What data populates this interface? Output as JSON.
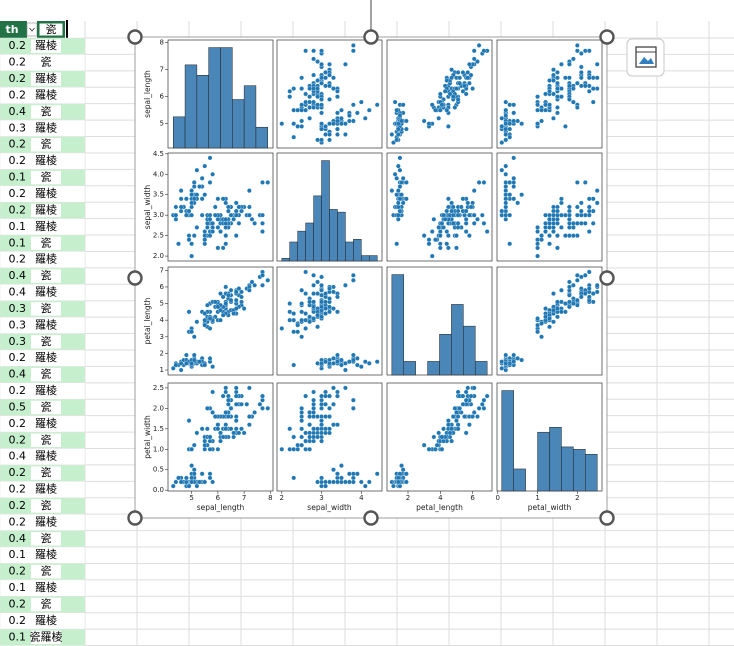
{
  "spreadsheet": {
    "headers": [
      "th",
      "瓷"
    ],
    "rows": [
      [
        0.2,
        "羅棱"
      ],
      [
        0.2,
        "瓷"
      ],
      [
        0.2,
        "羅棱"
      ],
      [
        0.2,
        "羅棱"
      ],
      [
        0.4,
        "瓷"
      ],
      [
        0.3,
        "羅棱"
      ],
      [
        0.2,
        "瓷"
      ],
      [
        0.2,
        "羅棱"
      ],
      [
        0.1,
        "瓷"
      ],
      [
        0.2,
        "羅棱"
      ],
      [
        0.2,
        "羅棱"
      ],
      [
        0.1,
        "羅棱"
      ],
      [
        0.1,
        "瓷"
      ],
      [
        0.2,
        "羅棱"
      ],
      [
        0.4,
        "瓷"
      ],
      [
        0.4,
        "羅棱"
      ],
      [
        0.3,
        "瓷"
      ],
      [
        0.3,
        "羅棱"
      ],
      [
        0.3,
        "瓷"
      ],
      [
        0.2,
        "羅棱"
      ],
      [
        0.4,
        "瓷"
      ],
      [
        0.2,
        "羅棱"
      ],
      [
        0.5,
        "瓷"
      ],
      [
        0.2,
        "羅棱"
      ],
      [
        0.2,
        "瓷"
      ],
      [
        0.4,
        "羅棱"
      ],
      [
        0.2,
        "瓷"
      ],
      [
        0.2,
        "羅棱"
      ],
      [
        0.2,
        "瓷"
      ],
      [
        0.2,
        "羅棱"
      ],
      [
        0.4,
        "瓷"
      ],
      [
        0.1,
        "羅棱"
      ],
      [
        0.2,
        "瓷"
      ],
      [
        0.1,
        "羅棱"
      ],
      [
        0.2,
        "瓷"
      ],
      [
        0.2,
        "羅棱"
      ],
      [
        0.1,
        "瓷羅棱"
      ]
    ]
  },
  "chart_data": {
    "type": "pairplot",
    "color": "#1f77b4",
    "hist_color": "#4a86b8",
    "variables": [
      {
        "name": "sepal_length",
        "lim": [
          4.1,
          8.1
        ],
        "xticks": [
          5,
          6,
          7,
          8
        ],
        "yticks": [
          5,
          6,
          7,
          8
        ],
        "hist": {
          "bins": [
            4.3,
            4.75,
            5.2,
            5.65,
            6.1,
            6.55,
            7.0,
            7.45,
            7.9
          ],
          "counts": [
            9,
            24,
            21,
            29,
            29,
            14,
            18,
            6
          ]
        },
        "values": [
          5.1,
          4.9,
          4.7,
          4.6,
          5.0,
          5.4,
          4.6,
          5.0,
          4.4,
          4.9,
          5.4,
          4.8,
          4.8,
          4.3,
          5.8,
          5.7,
          5.4,
          5.1,
          5.7,
          5.1,
          5.4,
          5.1,
          4.6,
          5.1,
          4.8,
          5.0,
          5.0,
          5.2,
          5.2,
          4.7,
          4.8,
          5.4,
          5.2,
          5.5,
          4.9,
          5.0,
          5.5,
          4.9,
          4.4,
          5.1,
          5.0,
          4.5,
          4.4,
          5.0,
          5.1,
          4.8,
          5.1,
          4.6,
          5.3,
          5.0,
          7.0,
          6.4,
          6.9,
          5.5,
          6.5,
          5.7,
          6.3,
          4.9,
          6.6,
          5.2,
          5.0,
          5.9,
          6.0,
          6.1,
          5.6,
          6.7,
          5.6,
          5.8,
          6.2,
          5.6,
          5.9,
          6.1,
          6.3,
          6.1,
          6.4,
          6.6,
          6.8,
          6.7,
          6.0,
          5.7,
          5.5,
          5.5,
          5.8,
          6.0,
          5.4,
          6.0,
          6.7,
          6.3,
          5.6,
          5.5,
          5.5,
          6.1,
          5.8,
          5.0,
          5.6,
          5.7,
          5.7,
          6.2,
          5.1,
          5.7,
          6.3,
          5.8,
          7.1,
          6.3,
          6.5,
          7.6,
          4.9,
          7.3,
          6.7,
          7.2,
          6.5,
          6.4,
          6.8,
          5.7,
          5.8,
          6.4,
          6.5,
          7.7,
          7.7,
          6.0,
          6.9,
          5.6,
          7.7,
          6.3,
          6.7,
          7.2,
          6.2,
          6.1,
          6.4,
          7.2,
          7.4,
          7.9,
          6.4,
          6.3,
          6.1,
          7.7,
          6.3,
          6.4,
          6.0,
          6.9,
          6.7,
          6.9,
          5.8,
          6.8,
          6.7,
          6.7,
          6.3,
          6.5,
          6.2,
          5.9
        ]
      },
      {
        "name": "sepal_width",
        "lim": [
          1.88,
          4.52
        ],
        "xticks": [
          2,
          3,
          4
        ],
        "yticks": [
          {
            "value": 2,
            "label": "2.0"
          },
          2.5,
          {
            "value": 3,
            "label": "3.0"
          },
          3.5,
          {
            "value": 4,
            "label": "4.0"
          },
          4.5
        ],
        "hist": {
          "bins": [
            2.0,
            2.2,
            2.4,
            2.6,
            2.8,
            3.0,
            3.2,
            3.4,
            3.6,
            3.8,
            4.0,
            4.2,
            4.4
          ],
          "counts": [
            1,
            7,
            11,
            14,
            24,
            37,
            19,
            18,
            7,
            8,
            2,
            2
          ]
        },
        "values": [
          3.5,
          3.0,
          3.2,
          3.1,
          3.6,
          3.9,
          3.4,
          3.4,
          2.9,
          3.1,
          3.7,
          3.4,
          3.0,
          3.0,
          4.0,
          4.4,
          3.9,
          3.5,
          3.8,
          3.8,
          3.4,
          3.7,
          3.6,
          3.3,
          3.4,
          3.0,
          3.4,
          3.5,
          3.4,
          3.2,
          3.1,
          3.4,
          4.1,
          4.2,
          3.1,
          3.2,
          3.5,
          3.1,
          3.0,
          3.4,
          3.5,
          2.3,
          3.2,
          3.5,
          3.8,
          3.0,
          3.8,
          3.2,
          3.7,
          3.3,
          3.2,
          3.2,
          3.1,
          2.3,
          2.8,
          2.8,
          3.3,
          2.4,
          2.9,
          2.7,
          2.0,
          3.0,
          2.2,
          2.9,
          2.9,
          3.1,
          3.0,
          2.7,
          2.2,
          2.5,
          3.2,
          2.8,
          2.5,
          2.8,
          2.9,
          3.0,
          2.8,
          3.0,
          2.9,
          2.6,
          2.4,
          2.4,
          2.7,
          2.7,
          3.0,
          3.4,
          3.1,
          2.3,
          3.0,
          2.5,
          2.6,
          3.0,
          2.6,
          2.3,
          2.7,
          3.0,
          2.9,
          2.9,
          2.5,
          2.8,
          3.3,
          2.7,
          3.0,
          2.9,
          3.0,
          3.0,
          2.5,
          2.9,
          2.5,
          3.6,
          3.2,
          2.7,
          3.0,
          2.5,
          2.8,
          3.2,
          3.0,
          3.8,
          2.6,
          2.2,
          3.2,
          2.8,
          2.8,
          2.7,
          3.3,
          3.2,
          2.8,
          3.0,
          2.8,
          3.0,
          2.8,
          3.8,
          2.8,
          2.8,
          2.6,
          3.0,
          3.4,
          3.1,
          3.0,
          3.1,
          3.1,
          3.1,
          2.7,
          3.2,
          3.3,
          3.0,
          2.5,
          3.0,
          3.4,
          3.0
        ]
      },
      {
        "name": "petal_length",
        "lim": [
          0.7,
          7.2
        ],
        "xticks": [
          2,
          4,
          6
        ],
        "yticks": [
          1,
          2,
          3,
          4,
          5,
          6,
          7
        ],
        "hist": {
          "bins": [
            1.0,
            1.7375,
            2.475,
            3.2125,
            3.95,
            4.6875,
            5.425,
            6.1625,
            6.9
          ],
          "counts": [
            37,
            5,
            0,
            5,
            15,
            26,
            18,
            5
          ]
        },
        "values": [
          1.4,
          1.4,
          1.3,
          1.5,
          1.4,
          1.7,
          1.4,
          1.5,
          1.4,
          1.5,
          1.5,
          1.6,
          1.4,
          1.1,
          1.2,
          1.5,
          1.3,
          1.4,
          1.7,
          1.5,
          1.7,
          1.5,
          1.0,
          1.7,
          1.9,
          1.6,
          1.6,
          1.5,
          1.4,
          1.6,
          1.6,
          1.5,
          1.5,
          1.4,
          1.5,
          1.2,
          1.3,
          1.5,
          1.3,
          1.5,
          1.3,
          1.3,
          1.3,
          1.6,
          1.9,
          1.4,
          1.6,
          1.4,
          1.5,
          1.4,
          4.7,
          4.5,
          4.9,
          4.0,
          4.6,
          4.5,
          4.7,
          3.3,
          4.6,
          3.9,
          3.5,
          4.2,
          4.0,
          4.7,
          3.6,
          4.4,
          4.5,
          4.1,
          4.5,
          3.9,
          4.8,
          4.0,
          4.9,
          4.7,
          4.3,
          4.4,
          4.8,
          5.0,
          4.5,
          3.5,
          3.8,
          3.7,
          3.9,
          5.1,
          4.5,
          4.5,
          4.7,
          4.4,
          4.1,
          4.0,
          4.4,
          4.6,
          4.0,
          3.3,
          4.2,
          4.2,
          4.2,
          4.3,
          3.0,
          4.1,
          6.0,
          5.1,
          5.9,
          5.6,
          5.8,
          6.6,
          4.5,
          6.3,
          5.8,
          6.1,
          5.1,
          5.3,
          5.5,
          5.0,
          5.1,
          5.3,
          5.5,
          6.7,
          6.9,
          5.0,
          5.7,
          4.9,
          6.7,
          4.9,
          5.7,
          6.0,
          4.8,
          4.9,
          5.6,
          5.8,
          6.1,
          6.4,
          5.6,
          5.1,
          5.6,
          6.1,
          5.6,
          5.5,
          4.8,
          5.4,
          5.6,
          5.1,
          5.1,
          5.9,
          5.7,
          5.2,
          5.0,
          5.2,
          5.4,
          5.1
        ]
      },
      {
        "name": "petal_width",
        "lim": [
          -0.02,
          2.62
        ],
        "xticks": [
          0,
          1,
          2
        ],
        "yticks": [
          {
            "value": 0,
            "label": "0.0"
          },
          0.5,
          {
            "value": 1,
            "label": "1.0"
          },
          1.5,
          {
            "value": 2,
            "label": "2.0"
          },
          2.5
        ],
        "hist": {
          "bins": [
            0.1,
            0.4,
            0.7,
            1.0,
            1.3,
            1.6,
            1.9,
            2.2,
            2.5
          ],
          "counts": [
            41,
            9,
            0,
            24,
            26,
            18,
            17,
            15
          ]
        },
        "values": [
          0.2,
          0.2,
          0.2,
          0.2,
          0.2,
          0.4,
          0.3,
          0.2,
          0.2,
          0.1,
          0.2,
          0.2,
          0.1,
          0.1,
          0.2,
          0.4,
          0.4,
          0.3,
          0.3,
          0.3,
          0.2,
          0.4,
          0.2,
          0.5,
          0.2,
          0.2,
          0.4,
          0.2,
          0.2,
          0.2,
          0.2,
          0.4,
          0.1,
          0.2,
          0.1,
          0.2,
          0.2,
          0.1,
          0.2,
          0.2,
          0.3,
          0.3,
          0.2,
          0.6,
          0.4,
          0.3,
          0.2,
          0.2,
          0.2,
          0.2,
          1.4,
          1.5,
          1.5,
          1.3,
          1.5,
          1.3,
          1.6,
          1.0,
          1.3,
          1.4,
          1.0,
          1.5,
          1.0,
          1.4,
          1.3,
          1.4,
          1.5,
          1.0,
          1.5,
          1.1,
          1.8,
          1.3,
          1.5,
          1.2,
          1.3,
          1.4,
          1.4,
          1.7,
          1.5,
          1.0,
          1.1,
          1.0,
          1.2,
          1.6,
          1.5,
          1.6,
          1.5,
          1.3,
          1.3,
          1.3,
          1.2,
          1.4,
          1.2,
          1.0,
          1.3,
          1.2,
          1.3,
          1.3,
          1.1,
          1.3,
          2.5,
          1.9,
          2.1,
          1.8,
          2.2,
          2.1,
          1.7,
          1.8,
          1.8,
          2.5,
          2.0,
          1.9,
          2.1,
          2.0,
          2.4,
          2.3,
          1.8,
          2.2,
          2.3,
          1.5,
          2.3,
          2.0,
          2.0,
          1.8,
          2.1,
          1.8,
          1.8,
          1.8,
          2.1,
          1.6,
          1.9,
          2.0,
          2.2,
          1.5,
          1.4,
          2.3,
          2.4,
          1.8,
          1.8,
          2.1,
          2.4,
          2.3,
          1.9,
          2.3,
          2.5,
          2.3,
          1.9,
          2.0,
          2.3,
          1.8
        ]
      }
    ]
  }
}
